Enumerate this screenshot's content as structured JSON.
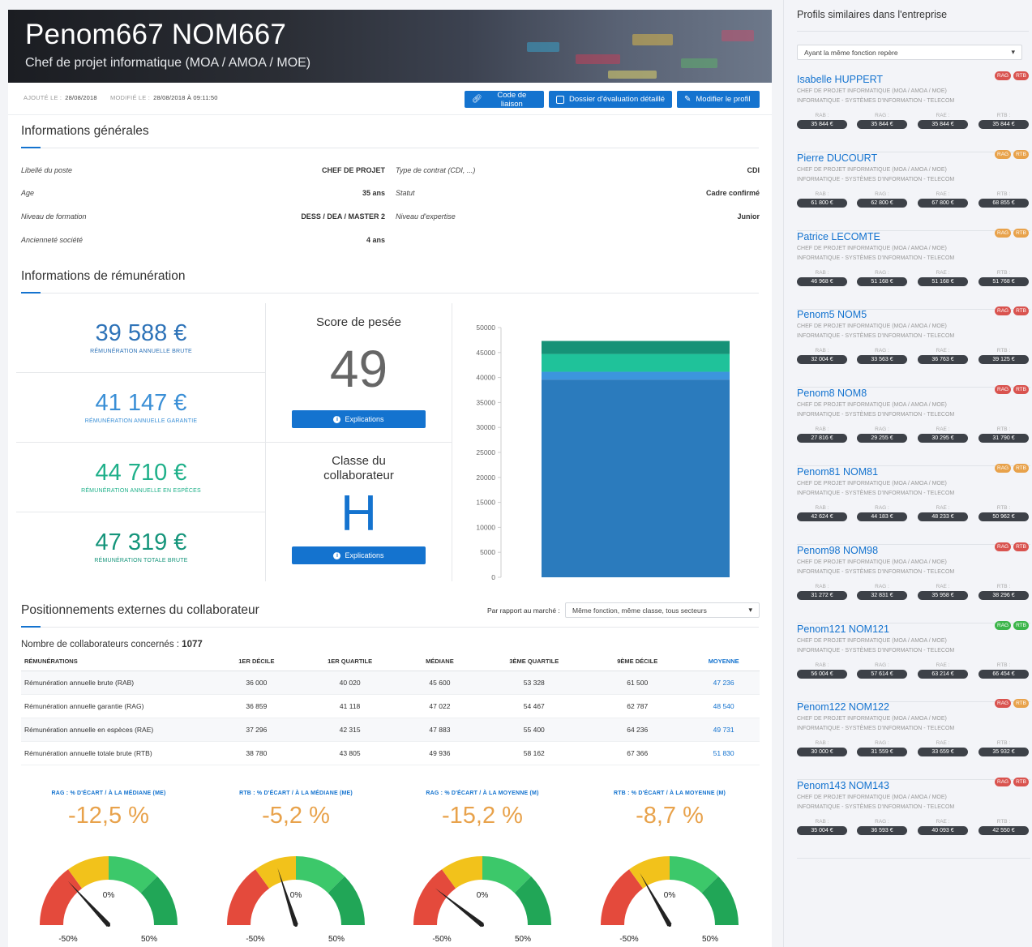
{
  "profile": {
    "name": "Penom667 NOM667",
    "role": "Chef de projet informatique (MOA / AMOA / MOE)",
    "added_label": "AJOUTÉ LE :",
    "added_value": "28/08/2018",
    "modified_label": "MODIFIÉ LE :",
    "modified_value": "28/08/2018 À 09:11:50"
  },
  "toolbar": {
    "liaison_label": "Code de liaison",
    "dossier_label": "Dossier d'évaluation détaillé",
    "modify_label": "Modifier le profil"
  },
  "general": {
    "title": "Informations générales",
    "left": [
      {
        "label": "Libellé du poste",
        "value": "CHEF DE PROJET"
      },
      {
        "label": "Age",
        "value": "35 ans"
      },
      {
        "label": "Niveau de formation",
        "value": "DESS / DEA / MASTER 2"
      },
      {
        "label": "Ancienneté société",
        "value": "4 ans"
      }
    ],
    "right": [
      {
        "label": "Type de contrat (CDI, ...)",
        "value": "CDI"
      },
      {
        "label": "Statut",
        "value": "Cadre confirmé"
      },
      {
        "label": "Niveau d'expertise",
        "value": "Junior"
      }
    ]
  },
  "remuneration": {
    "title": "Informations de rémunération",
    "items": [
      {
        "amount": "39 588 €",
        "caption": "RÉMUNÉRATION ANNUELLE BRUTE",
        "color": "#2e73b8"
      },
      {
        "amount": "41 147 €",
        "caption": "RÉMUNÉRATION ANNUELLE GARANTIE",
        "color": "#3a8fd6"
      },
      {
        "amount": "44 710 €",
        "caption": "RÉMUNÉRATION ANNUELLE EN ESPÈCES",
        "color": "#1fb08a"
      },
      {
        "amount": "47 319 €",
        "caption": "RÉMUNÉRATION TOTALE BRUTE",
        "color": "#15957b"
      }
    ],
    "score_title": "Score de pesée",
    "score_value": "49",
    "class_title": "Classe du collaborateur",
    "class_value": "H",
    "explain_label": "Explications"
  },
  "chart_data": {
    "type": "bar",
    "stacked": true,
    "ylim": [
      0,
      50000
    ],
    "yticks": [
      "0",
      "5000",
      "10000",
      "15000",
      "20000",
      "25000",
      "30000",
      "35000",
      "40000",
      "45000",
      "50000"
    ],
    "segments": [
      {
        "value": 39588,
        "color": "#2b7bbd"
      },
      {
        "value": 1559,
        "color": "#3c95dd"
      },
      {
        "value": 3563,
        "color": "#1fc29a"
      },
      {
        "value": 2609,
        "color": "#169277"
      }
    ]
  },
  "positioning": {
    "title": "Positionnements externes du collaborateur",
    "market_label": "Par rapport au marché :",
    "market_value": "Même fonction, même classe, tous secteurs",
    "count_label": "Nombre de collaborateurs concernés :",
    "count_value": "1077",
    "headers": [
      "RÉMUNÉRATIONS",
      "1ER DÉCILE",
      "1ER QUARTILE",
      "MÉDIANE",
      "3ÈME QUARTILE",
      "9ÈME DÉCILE",
      "MOYENNE"
    ],
    "rows": [
      [
        "Rémunération annuelle brute (RAB)",
        "36 000",
        "40 020",
        "45 600",
        "53 328",
        "61 500",
        "47 236"
      ],
      [
        "Rémunération annuelle garantie (RAG)",
        "36 859",
        "41 118",
        "47 022",
        "54 467",
        "62 787",
        "48 540"
      ],
      [
        "Rémunération annuelle en espèces (RAE)",
        "37 296",
        "42 315",
        "47 883",
        "55 400",
        "64 236",
        "49 731"
      ],
      [
        "Rémunération annuelle totale brute (RTB)",
        "38 780",
        "43 805",
        "49 936",
        "58 162",
        "67 366",
        "51 830"
      ]
    ]
  },
  "gauges": [
    {
      "title": "RAG : % D'ÉCART / À LA MÉDIANE (ME)",
      "value": "-12,5 %",
      "pct": -12.5
    },
    {
      "title": "RTB : % D'ÉCART / À LA MÉDIANE (ME)",
      "value": "-5,2 %",
      "pct": -5.2
    },
    {
      "title": "RAG : % D'ÉCART / À LA MOYENNE (M)",
      "value": "-15,2 %",
      "pct": -15.2
    },
    {
      "title": "RTB : % D'ÉCART / À LA MOYENNE (M)",
      "value": "-8,7 %",
      "pct": -8.7
    }
  ],
  "gauge_labels": {
    "min": "-50%",
    "mid": "0%",
    "max": "50%"
  },
  "sidebar": {
    "title": "Profils similaires dans l'entreprise",
    "filter": "Ayant la même fonction repère",
    "job_line": "CHEF DE PROJET INFORMATIQUE (MOA / AMOA / MOE)",
    "sector_line": "INFORMATIQUE - SYSTÈMES D'INFORMATION - TELECOM",
    "keys": [
      "RAB :",
      "RAG :",
      "RAE :",
      "RTB :"
    ],
    "tag_rag": "RAG",
    "tag_rtb": "RTB",
    "profiles": [
      {
        "name": "Isabelle HUPPERT",
        "rag_color": "#d9534f",
        "rtb_color": "#d9534f",
        "values": [
          "35 844 €",
          "35 844 €",
          "35 844 €",
          "35 844 €"
        ]
      },
      {
        "name": "Pierre DUCOURT",
        "rag_color": "#e8a24b",
        "rtb_color": "#e8a24b",
        "values": [
          "61 800 €",
          "62 800 €",
          "67 800 €",
          "68 855 €"
        ]
      },
      {
        "name": "Patrice LECOMTE",
        "rag_color": "#e8a24b",
        "rtb_color": "#e8a24b",
        "values": [
          "46 968 €",
          "51 168 €",
          "51 168 €",
          "51 768 €"
        ]
      },
      {
        "name": "Penom5 NOM5",
        "rag_color": "#d9534f",
        "rtb_color": "#d9534f",
        "values": [
          "32 004 €",
          "33 563 €",
          "36 763 €",
          "39 125 €"
        ]
      },
      {
        "name": "Penom8 NOM8",
        "rag_color": "#d9534f",
        "rtb_color": "#d9534f",
        "values": [
          "27 816 €",
          "29 255 €",
          "30 295 €",
          "31 790 €"
        ]
      },
      {
        "name": "Penom81 NOM81",
        "rag_color": "#e8a24b",
        "rtb_color": "#e8a24b",
        "values": [
          "42 624 €",
          "44 183 €",
          "48 233 €",
          "50 962 €"
        ]
      },
      {
        "name": "Penom98 NOM98",
        "rag_color": "#d9534f",
        "rtb_color": "#d9534f",
        "values": [
          "31 272 €",
          "32 831 €",
          "35 958 €",
          "38 296 €"
        ]
      },
      {
        "name": "Penom121 NOM121",
        "rag_color": "#3cb54a",
        "rtb_color": "#3cb54a",
        "values": [
          "56 004 €",
          "57 614 €",
          "63 214 €",
          "66 454 €"
        ]
      },
      {
        "name": "Penom122 NOM122",
        "rag_color": "#d9534f",
        "rtb_color": "#e8a24b",
        "values": [
          "30 000 €",
          "31 559 €",
          "33 659 €",
          "35 932 €"
        ]
      },
      {
        "name": "Penom143 NOM143",
        "rag_color": "#d9534f",
        "rtb_color": "#d9534f",
        "values": [
          "35 004 €",
          "36 593 €",
          "40 093 €",
          "42 550 €"
        ]
      }
    ]
  }
}
